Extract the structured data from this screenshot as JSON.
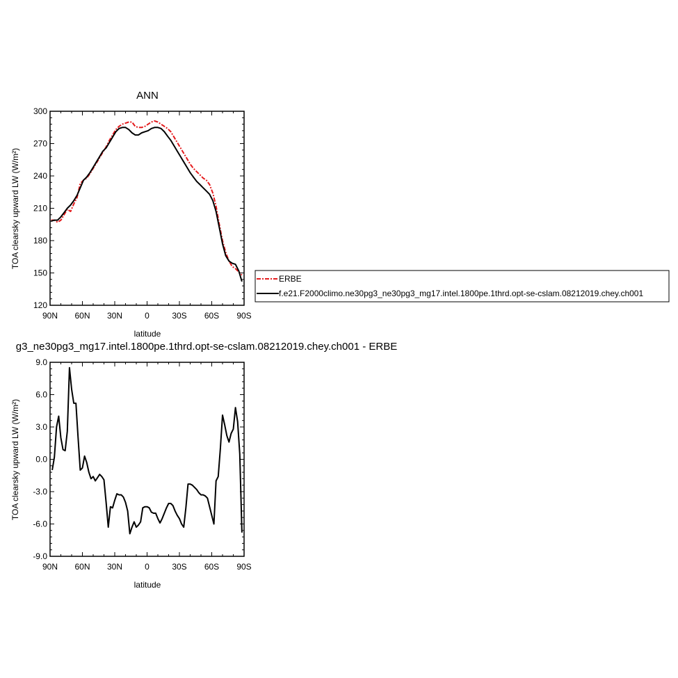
{
  "chart_data": [
    {
      "type": "line",
      "title": "ANN",
      "xlabel": "latitude",
      "ylabel": "TOA clearsky upward LW (W/m²)",
      "xlim": [
        90,
        -90
      ],
      "ylim": [
        120,
        300
      ],
      "xticks": [
        90,
        60,
        30,
        0,
        -30,
        -60,
        -90
      ],
      "xtick_labels": [
        "90N",
        "60N",
        "30N",
        "0",
        "30S",
        "60S",
        "90S"
      ],
      "yticks": [
        120,
        150,
        180,
        210,
        240,
        270,
        300
      ],
      "ytick_labels": [
        "120",
        "150",
        "180",
        "210",
        "240",
        "270",
        "300"
      ],
      "legend_position": "right",
      "series": [
        {
          "name": "ERBE",
          "color": "#e41a1c",
          "dash": "dashed",
          "x": [
            89,
            86,
            83,
            80,
            77,
            74,
            71,
            68,
            65,
            62,
            59,
            56,
            53,
            50,
            47,
            44,
            41,
            38,
            35,
            32,
            29,
            26,
            23,
            20,
            17,
            14,
            11,
            8,
            5,
            2,
            -1,
            -4,
            -7,
            -10,
            -13,
            -16,
            -19,
            -22,
            -25,
            -28,
            -31,
            -34,
            -37,
            -40,
            -43,
            -46,
            -49,
            -52,
            -55,
            -58,
            -61,
            -64,
            -67,
            -70,
            -73,
            -76,
            -79,
            -82,
            -85,
            -88
          ],
          "y": [
            199,
            199,
            197,
            199,
            204,
            209,
            207,
            214,
            220,
            233,
            236,
            238,
            242,
            247,
            252,
            257,
            262,
            267,
            273,
            278,
            283,
            286,
            288,
            289,
            290,
            290,
            286,
            285,
            285,
            286,
            288,
            290,
            291,
            290,
            288,
            286,
            284,
            281,
            276,
            271,
            266,
            261,
            256,
            251,
            247,
            244,
            241,
            238,
            236,
            232,
            224,
            212,
            195,
            180,
            169,
            161,
            156,
            154,
            151,
            148
          ]
        },
        {
          "name": "f.e21.F2000climo.ne30pg3_ne30pg3_mg17.intel.1800pe.1thrd.opt-se-cslam.08212019.chey.ch001",
          "color": "#000000",
          "dash": "solid",
          "x": [
            89,
            86,
            83,
            80,
            77,
            74,
            71,
            68,
            65,
            62,
            59,
            56,
            53,
            50,
            47,
            44,
            41,
            38,
            35,
            32,
            29,
            26,
            23,
            20,
            17,
            14,
            11,
            8,
            5,
            2,
            -1,
            -4,
            -7,
            -10,
            -13,
            -16,
            -19,
            -22,
            -25,
            -28,
            -31,
            -34,
            -37,
            -40,
            -43,
            -46,
            -49,
            -52,
            -55,
            -58,
            -61,
            -64,
            -67,
            -70,
            -73,
            -76,
            -79,
            -82,
            -85,
            -88
          ],
          "y": [
            198,
            199,
            199,
            202,
            206,
            210,
            213,
            217,
            222,
            229,
            236,
            239,
            243,
            248,
            253,
            258,
            263,
            266,
            271,
            276,
            281,
            284,
            285,
            285,
            283,
            280,
            278,
            278,
            280,
            281,
            282,
            284,
            285,
            285,
            284,
            281,
            277,
            273,
            268,
            263,
            258,
            253,
            248,
            243,
            239,
            235,
            232,
            229,
            226,
            223,
            217,
            207,
            192,
            177,
            166,
            161,
            159,
            158,
            152,
            142
          ]
        }
      ]
    },
    {
      "type": "line",
      "title": "g3_ne30pg3_mg17.intel.1800pe.1thrd.opt-se-cslam.08212019.chey.ch001 - ERBE",
      "xlabel": "latitude",
      "ylabel": "TOA clearsky upward LW (W/m²)",
      "xlim": [
        90,
        -90
      ],
      "ylim": [
        -9.0,
        9.0
      ],
      "xticks": [
        90,
        60,
        30,
        0,
        -30,
        -60,
        -90
      ],
      "xtick_labels": [
        "90N",
        "60N",
        "30N",
        "0",
        "30S",
        "60S",
        "90S"
      ],
      "yticks": [
        -9.0,
        -6.0,
        -3.0,
        0.0,
        3.0,
        6.0,
        9.0
      ],
      "ytick_labels": [
        "-9.0",
        "-6.0",
        "-3.0",
        "0.0",
        "3.0",
        "6.0",
        "9.0"
      ],
      "series": [
        {
          "color": "#000000",
          "dash": "solid",
          "x": [
            88,
            86,
            84,
            82,
            80,
            78,
            76,
            74,
            72,
            70,
            68,
            66,
            64,
            62,
            60,
            58,
            56,
            54,
            52,
            50,
            48,
            46,
            44,
            42,
            40,
            38,
            36,
            34,
            32,
            30,
            28,
            26,
            24,
            22,
            20,
            18,
            16,
            14,
            12,
            10,
            8,
            6,
            4,
            2,
            0,
            -2,
            -4,
            -6,
            -8,
            -10,
            -12,
            -14,
            -16,
            -18,
            -20,
            -22,
            -24,
            -26,
            -28,
            -30,
            -32,
            -34,
            -36,
            -38,
            -40,
            -42,
            -44,
            -46,
            -48,
            -50,
            -52,
            -54,
            -56,
            -58,
            -60,
            -62,
            -64,
            -66,
            -68,
            -70,
            -72,
            -74,
            -76,
            -78,
            -80,
            -82,
            -84,
            -86,
            -88
          ],
          "y": [
            -1.0,
            0.2,
            3.0,
            4.0,
            2.0,
            0.9,
            0.8,
            2.6,
            8.5,
            6.5,
            5.2,
            5.2,
            2.0,
            -1.0,
            -0.8,
            0.3,
            -0.3,
            -1.2,
            -1.8,
            -1.6,
            -2.0,
            -1.7,
            -1.4,
            -1.6,
            -1.9,
            -4.0,
            -6.3,
            -4.4,
            -4.5,
            -3.8,
            -3.2,
            -3.3,
            -3.3,
            -3.5,
            -4.0,
            -4.8,
            -6.9,
            -6.3,
            -5.8,
            -6.3,
            -6.1,
            -5.8,
            -4.5,
            -4.4,
            -4.4,
            -4.5,
            -4.9,
            -5.0,
            -5.0,
            -5.5,
            -5.9,
            -5.5,
            -5.0,
            -4.5,
            -4.1,
            -4.1,
            -4.3,
            -4.8,
            -5.2,
            -5.5,
            -6.0,
            -6.3,
            -4.5,
            -2.3,
            -2.3,
            -2.4,
            -2.6,
            -2.8,
            -3.1,
            -3.3,
            -3.3,
            -3.4,
            -3.6,
            -4.4,
            -5.2,
            -6.0,
            -2.0,
            -1.6,
            1.0,
            4.1,
            3.2,
            2.2,
            1.6,
            2.4,
            2.8,
            4.8,
            3.5,
            0.5,
            -6.8
          ]
        }
      ]
    }
  ]
}
